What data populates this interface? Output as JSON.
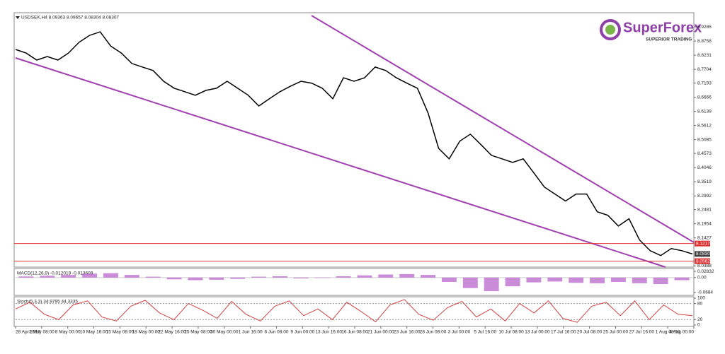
{
  "logo": {
    "brand": "SuperForex",
    "tagline": "SUPERIOR TRADING"
  },
  "time_labels": [
    "28 Apr 2017",
    "3 May 08:00",
    "8 May 00:00",
    "10 May 16:00",
    "15 May 08:00",
    "18 May 00:00",
    "22 May 16:00",
    "25 May 08:00",
    "30 May 00:00",
    "1 Jun 16:00",
    "6 Jun 08:00",
    "9 Jun 00:00",
    "13 Jun 16:00",
    "16 Jun 08:00",
    "21 Jun 00:00",
    "23 Jun 16:00",
    "28 Jun 08:00",
    "3 Jul 00:00",
    "5 Jul 16:00",
    "10 Jul 08:00",
    "13 Jul 00:00",
    "17 Jul 16:00",
    "20 Jul 08:00",
    "25 Jul 00:00",
    "27 Jul 16:00",
    "1 Aug 08:00",
    "4 Aug 00:00"
  ],
  "chart_data": [
    {
      "type": "line",
      "title": "USDSEK,H4  8.09363 8.09657 8.08304 8.08307",
      "color": "#000000",
      "values": [
        8.8444,
        8.831,
        8.805,
        8.818,
        8.805,
        8.831,
        8.871,
        8.897,
        8.91,
        8.857,
        8.831,
        8.792,
        8.779,
        8.766,
        8.726,
        8.7,
        8.687,
        8.674,
        8.692,
        8.7,
        8.726,
        8.7,
        8.674,
        8.634,
        8.661,
        8.687,
        8.708,
        8.726,
        8.719,
        8.7,
        8.661,
        8.739,
        8.726,
        8.739,
        8.779,
        8.766,
        8.739,
        8.719,
        8.7,
        8.608,
        8.476,
        8.437,
        8.503,
        8.529,
        8.49,
        8.45,
        8.437,
        8.424,
        8.437,
        8.385,
        8.332,
        8.306,
        8.28,
        8.306,
        8.306,
        8.24,
        8.227,
        8.187,
        8.214,
        8.135,
        8.095,
        8.077,
        8.103,
        8.095,
        8.083
      ],
      "ylim": [
        8.034,
        8.976
      ],
      "yticks": [
        8.9285,
        8.8758,
        8.8231,
        8.7704,
        8.7193,
        8.6666,
        8.6139,
        8.5612,
        8.5085,
        8.4573,
        8.4046,
        8.3519,
        8.2992,
        8.2481,
        8.1954,
        8.1427,
        8.0388
      ],
      "price_lines": [
        {
          "value": 8.1217,
          "label": "8.1217",
          "color": "#e03030"
        },
        {
          "value": 8.083,
          "label": "8.0830",
          "color": "#404040"
        },
        {
          "value": 8.0562,
          "label": "8.0562",
          "color": "#e03030"
        }
      ]
    },
    {
      "type": "bar",
      "title": "MACD(12,26,9) -0.012019 -0.013609",
      "color": "#b45ac8",
      "values": [
        0.005,
        0.008,
        0.012,
        0.018,
        0.02,
        0.012,
        0.004,
        -0.008,
        -0.012,
        -0.01,
        -0.006,
        0.004,
        0.006,
        -0.004,
        -0.002,
        0.006,
        0.01,
        0.014,
        0.016,
        0.012,
        -0.02,
        -0.048,
        -0.062,
        -0.04,
        -0.022,
        -0.018,
        -0.024,
        -0.026,
        -0.02,
        -0.026,
        -0.03,
        -0.012
      ],
      "ylim": [
        -0.075,
        0.035
      ],
      "yticks": [
        0.02832,
        {
          "value": 0,
          "label": "0.00"
        },
        -0.0684
      ]
    },
    {
      "type": "line",
      "title": "Stoch(5,3,3) 34.9795 44.3335",
      "color": "#d04040",
      "values": [
        60,
        85,
        40,
        20,
        75,
        90,
        30,
        15,
        70,
        92,
        45,
        20,
        80,
        55,
        25,
        88,
        40,
        15,
        70,
        90,
        35,
        60,
        20,
        85,
        50,
        12,
        75,
        95,
        40,
        18,
        65,
        88,
        30,
        60,
        15,
        80,
        45,
        90,
        25,
        10,
        70,
        85,
        35,
        90,
        20,
        75,
        40,
        35
      ],
      "ylim": [
        0,
        100
      ],
      "yticks": [
        100,
        80,
        20,
        0
      ]
    }
  ]
}
